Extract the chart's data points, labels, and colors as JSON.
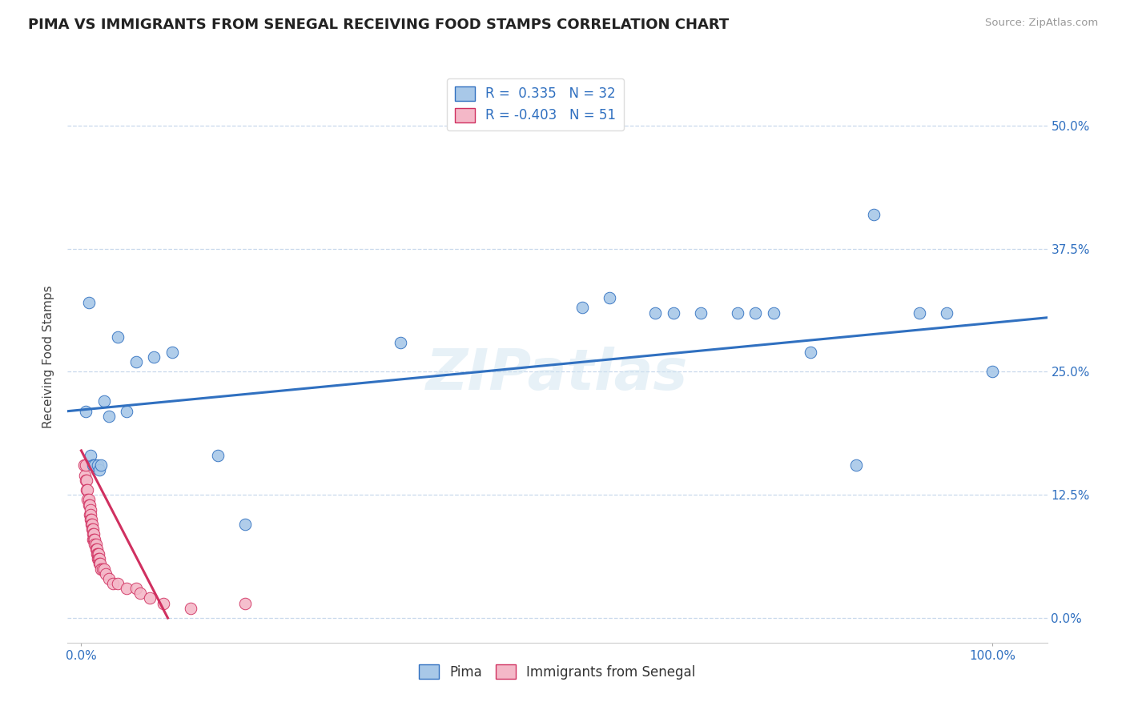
{
  "title": "PIMA VS IMMIGRANTS FROM SENEGAL RECEIVING FOOD STAMPS CORRELATION CHART",
  "source": "Source: ZipAtlas.com",
  "ylabel": "Receiving Food Stamps",
  "watermark": "ZIPatlas",
  "color_pima": "#a8c8e8",
  "color_senegal": "#f4b8c8",
  "line_color_pima": "#3070c0",
  "line_color_senegal": "#d03060",
  "background": "#ffffff",
  "grid_color": "#c8d8ec",
  "ytick_labels": [
    "0.0%",
    "12.5%",
    "25.0%",
    "37.5%",
    "50.0%"
  ],
  "ytick_values": [
    0.0,
    0.125,
    0.25,
    0.375,
    0.5
  ],
  "xtick_labels": [
    "0.0%",
    "100.0%"
  ],
  "xtick_values": [
    0.0,
    1.0
  ],
  "xlim": [
    -0.015,
    1.06
  ],
  "ylim": [
    -0.025,
    0.555
  ],
  "pima_x": [
    0.005,
    0.008,
    0.01,
    0.013,
    0.015,
    0.018,
    0.02,
    0.022,
    0.025,
    0.03,
    0.04,
    0.05,
    0.06,
    0.08,
    0.1,
    0.15,
    0.18,
    0.35,
    0.55,
    0.58,
    0.63,
    0.65,
    0.68,
    0.72,
    0.74,
    0.76,
    0.8,
    0.85,
    0.87,
    0.92,
    0.95,
    1.0
  ],
  "pima_y": [
    0.21,
    0.32,
    0.165,
    0.155,
    0.155,
    0.155,
    0.15,
    0.155,
    0.22,
    0.205,
    0.285,
    0.21,
    0.26,
    0.265,
    0.27,
    0.165,
    0.095,
    0.28,
    0.315,
    0.325,
    0.31,
    0.31,
    0.31,
    0.31,
    0.31,
    0.31,
    0.27,
    0.155,
    0.41,
    0.31,
    0.31,
    0.25
  ],
  "senegal_x": [
    0.003,
    0.004,
    0.005,
    0.005,
    0.006,
    0.006,
    0.007,
    0.007,
    0.008,
    0.008,
    0.009,
    0.009,
    0.01,
    0.01,
    0.01,
    0.011,
    0.011,
    0.012,
    0.012,
    0.013,
    0.013,
    0.013,
    0.014,
    0.014,
    0.015,
    0.015,
    0.016,
    0.016,
    0.017,
    0.017,
    0.018,
    0.018,
    0.019,
    0.019,
    0.02,
    0.02,
    0.021,
    0.022,
    0.023,
    0.025,
    0.027,
    0.03,
    0.035,
    0.04,
    0.05,
    0.06,
    0.065,
    0.075,
    0.09,
    0.12,
    0.18
  ],
  "senegal_y": [
    0.155,
    0.145,
    0.155,
    0.14,
    0.14,
    0.13,
    0.13,
    0.12,
    0.12,
    0.115,
    0.115,
    0.105,
    0.11,
    0.105,
    0.1,
    0.1,
    0.095,
    0.095,
    0.09,
    0.09,
    0.085,
    0.08,
    0.085,
    0.08,
    0.08,
    0.075,
    0.075,
    0.07,
    0.07,
    0.065,
    0.065,
    0.06,
    0.065,
    0.06,
    0.06,
    0.055,
    0.055,
    0.05,
    0.05,
    0.05,
    0.045,
    0.04,
    0.035,
    0.035,
    0.03,
    0.03,
    0.025,
    0.02,
    0.015,
    0.01,
    0.015
  ],
  "pima_trendline_x": [
    -0.015,
    1.06
  ],
  "pima_trendline_y": [
    0.21,
    0.305
  ],
  "senegal_trendline_x": [
    0.0,
    0.095
  ],
  "senegal_trendline_y": [
    0.17,
    0.0
  ]
}
